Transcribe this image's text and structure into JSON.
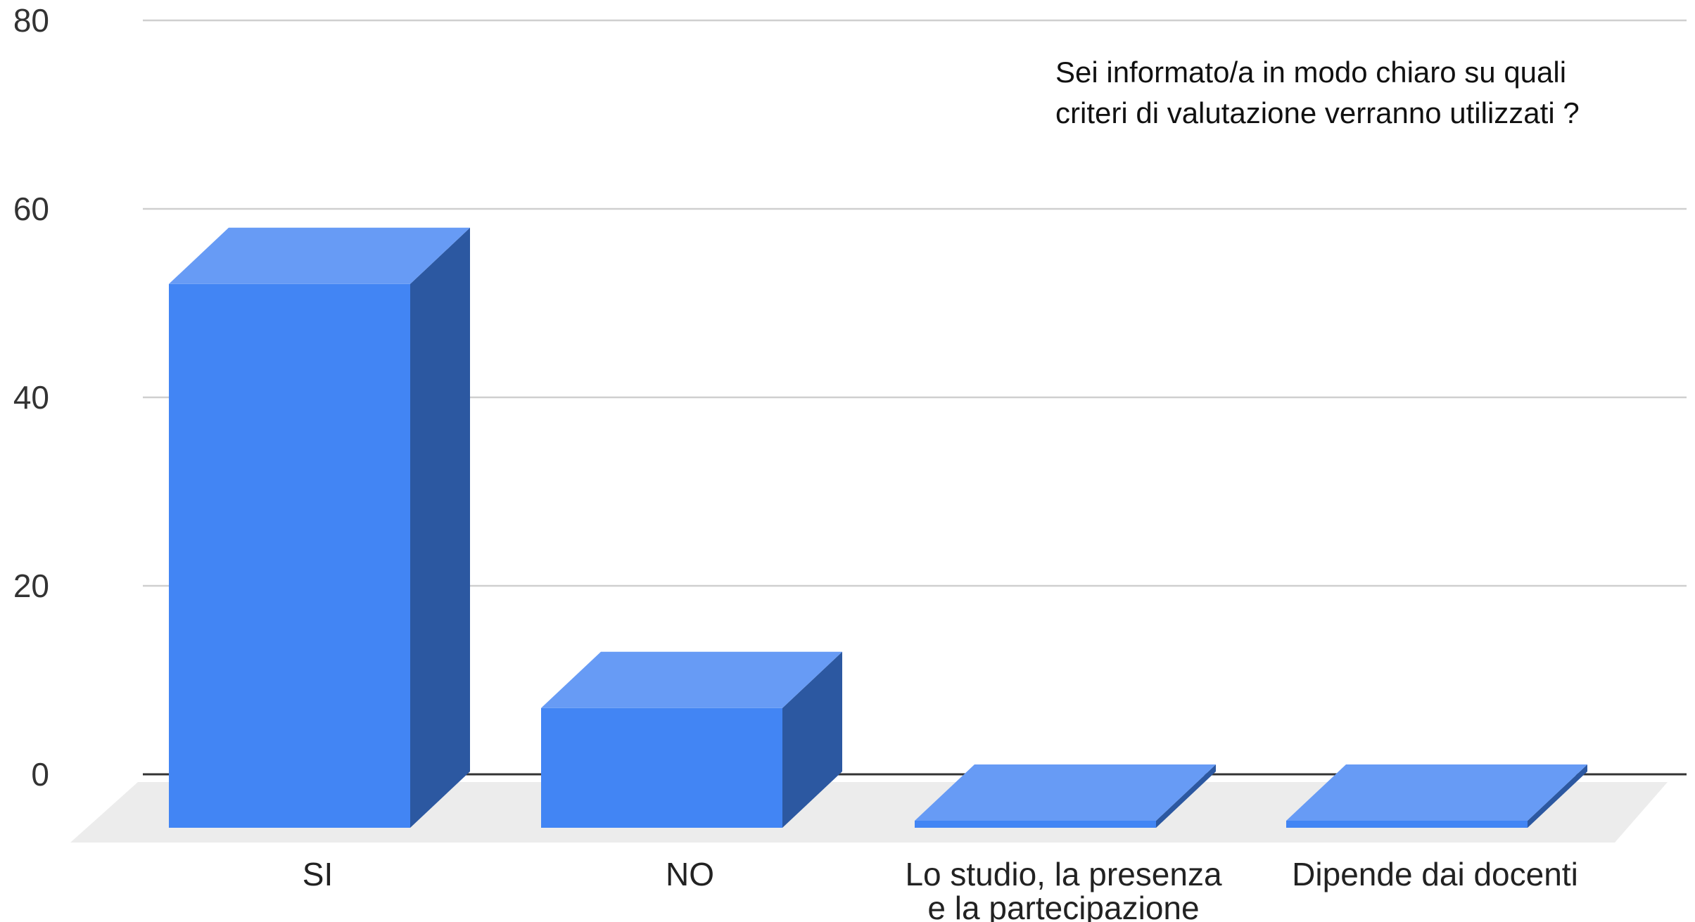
{
  "chart_data": {
    "type": "bar",
    "style": "3d",
    "title": "Sei informato/a in modo chiaro su  quali criteri di valutazione verranno utilizzati ?",
    "categories": [
      [
        "SI"
      ],
      [
        "NO"
      ],
      [
        "Lo studio, la presenza",
        "e la partecipazione"
      ],
      [
        "Dipende dai docenti"
      ]
    ],
    "values": [
      58,
      13,
      0,
      0
    ],
    "ylim": [
      0,
      80
    ],
    "yticks": [
      0,
      20,
      40,
      60,
      80
    ],
    "grid": true,
    "legend": "none",
    "colors": {
      "front": "#4285f4",
      "top": "#679bf5",
      "side": "#2c58a1",
      "floor": "#ececec"
    }
  }
}
